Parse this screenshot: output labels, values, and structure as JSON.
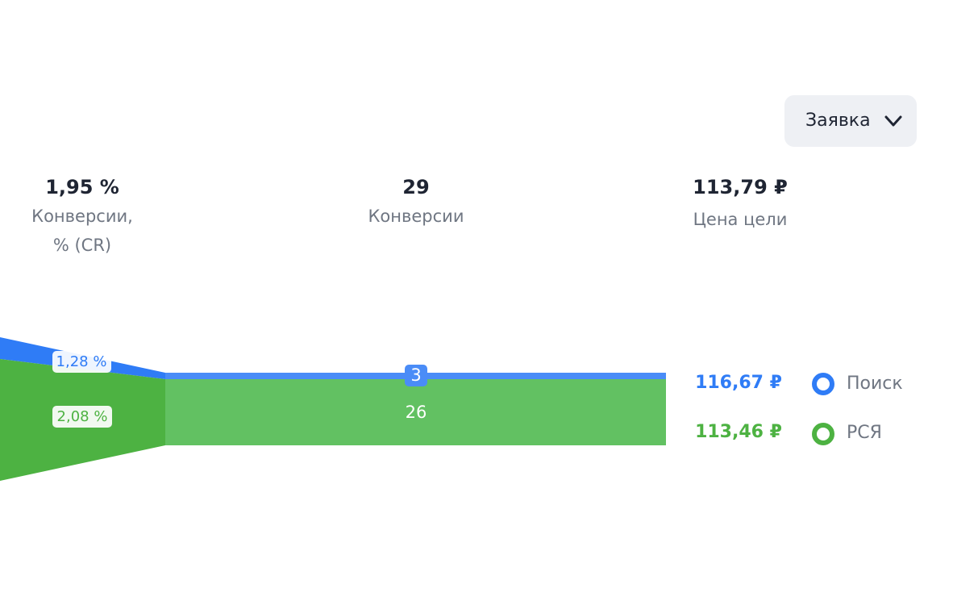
{
  "dropdown": {
    "label": "Заявка"
  },
  "metrics": [
    {
      "value": "1,95 %",
      "label": "Конверсии, % (CR)"
    },
    {
      "value": "29",
      "label": "Конверсии"
    },
    {
      "value": "113,79 ₽",
      "label": "Цена цели"
    }
  ],
  "funnel": {
    "rates": [
      "1,28 %",
      "2,08 %"
    ],
    "counts": [
      "3",
      "26"
    ]
  },
  "legend": [
    {
      "price": "116,67 ₽",
      "name": "Поиск"
    },
    {
      "price": "113,46 ₽",
      "name": "РСЯ"
    }
  ]
}
